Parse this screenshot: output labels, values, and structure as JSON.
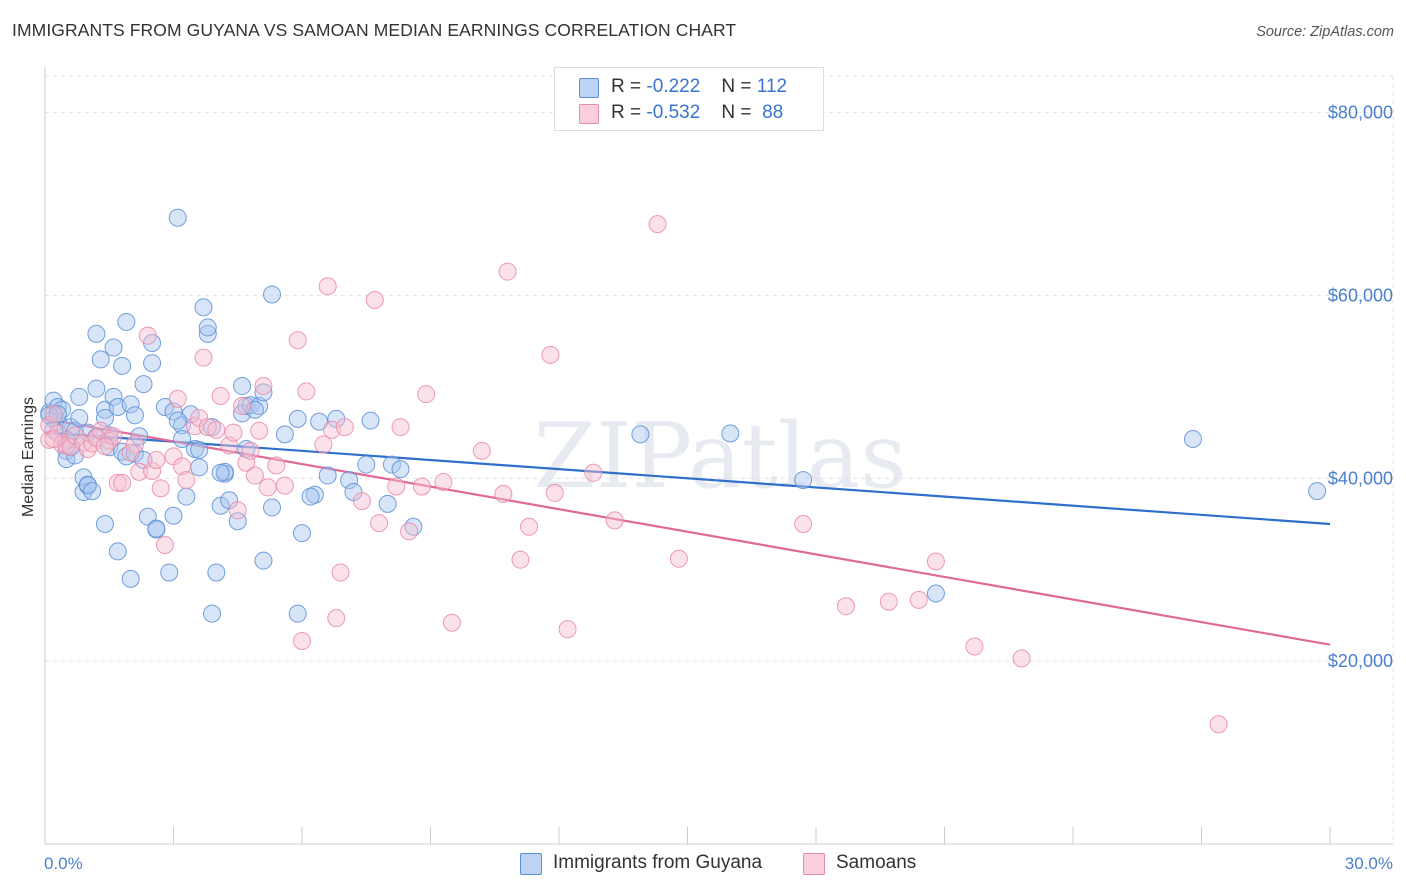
{
  "title": "IMMIGRANTS FROM GUYANA VS SAMOAN MEDIAN EARNINGS CORRELATION CHART",
  "source": "Source: ZipAtlas.com",
  "watermark": "ZIPatlas",
  "legend": {
    "rows": [
      {
        "r_label": "R =",
        "r_value": "-0.222",
        "n_label": "N =",
        "n_value": "112"
      },
      {
        "r_label": "R =",
        "r_value": "-0.532",
        "n_label": "N =",
        "n_value": "88"
      }
    ]
  },
  "colors": {
    "blue_fill": "#a9c6f0",
    "blue_stroke": "#5b8fd6",
    "blue_line": "#2f6fcc",
    "pink_fill": "#f6bfd0",
    "pink_stroke": "#e98aa8",
    "pink_line": "#e06a94",
    "tick_text": "#4a7fd0",
    "grid": "#e3e3e3"
  },
  "chart_data": {
    "type": "scatter",
    "title": "IMMIGRANTS FROM GUYANA VS SAMOAN MEDIAN EARNINGS CORRELATION CHART",
    "xlabel": "",
    "ylabel": "Median Earnings",
    "xlim": [
      0,
      30
    ],
    "ylim": [
      0,
      84000
    ],
    "x_tick_labels": [
      "0.0%",
      "30.0%"
    ],
    "y_ticks": [
      20000,
      40000,
      60000,
      80000
    ],
    "y_tick_labels": [
      "$20,000",
      "$40,000",
      "$60,000",
      "$80,000"
    ],
    "grid": true,
    "legend_position": "top-center",
    "series": [
      {
        "name": "Immigrants from Guyana",
        "color": "#5b8fd6",
        "trend": {
          "x": [
            0,
            30
          ],
          "y": [
            45000,
            35000
          ]
        },
        "points": [
          [
            0.1,
            47200
          ],
          [
            0.2,
            46500
          ],
          [
            0.2,
            48500
          ],
          [
            0.3,
            47800
          ],
          [
            0.3,
            46200
          ],
          [
            0.4,
            47500
          ],
          [
            0.5,
            43000
          ],
          [
            0.5,
            42100
          ],
          [
            0.6,
            45600
          ],
          [
            0.7,
            45200
          ],
          [
            0.7,
            42500
          ],
          [
            0.8,
            48900
          ],
          [
            0.8,
            46600
          ],
          [
            0.9,
            40100
          ],
          [
            0.9,
            38500
          ],
          [
            1.0,
            39200
          ],
          [
            1.0,
            39300
          ],
          [
            1.1,
            38600
          ],
          [
            1.2,
            49800
          ],
          [
            1.2,
            55800
          ],
          [
            1.3,
            53000
          ],
          [
            1.4,
            47500
          ],
          [
            1.4,
            35000
          ],
          [
            1.5,
            44700
          ],
          [
            1.5,
            43400
          ],
          [
            1.6,
            48900
          ],
          [
            1.6,
            54300
          ],
          [
            1.7,
            32000
          ],
          [
            1.7,
            47800
          ],
          [
            1.8,
            42900
          ],
          [
            1.8,
            52300
          ],
          [
            1.9,
            42400
          ],
          [
            1.9,
            57100
          ],
          [
            2.0,
            29000
          ],
          [
            2.0,
            48100
          ],
          [
            2.1,
            42700
          ],
          [
            2.1,
            46900
          ],
          [
            2.2,
            44600
          ],
          [
            2.3,
            50300
          ],
          [
            2.4,
            35800
          ],
          [
            2.5,
            54800
          ],
          [
            2.5,
            52600
          ],
          [
            2.6,
            34400
          ],
          [
            2.6,
            34500
          ],
          [
            2.8,
            47800
          ],
          [
            2.9,
            29700
          ],
          [
            3.0,
            35900
          ],
          [
            3.0,
            47300
          ],
          [
            3.1,
            68500
          ],
          [
            3.2,
            45800
          ],
          [
            3.2,
            44300
          ],
          [
            3.3,
            38000
          ],
          [
            3.4,
            47000
          ],
          [
            3.5,
            43200
          ],
          [
            3.6,
            41200
          ],
          [
            3.6,
            43100
          ],
          [
            3.7,
            58700
          ],
          [
            3.8,
            55800
          ],
          [
            3.8,
            56500
          ],
          [
            3.9,
            45600
          ],
          [
            3.9,
            25200
          ],
          [
            4.0,
            29700
          ],
          [
            4.1,
            37000
          ],
          [
            4.2,
            40500
          ],
          [
            4.2,
            40700
          ],
          [
            4.3,
            37600
          ],
          [
            4.5,
            35300
          ],
          [
            4.6,
            47100
          ],
          [
            4.6,
            50100
          ],
          [
            4.7,
            43200
          ],
          [
            4.7,
            47900
          ],
          [
            4.8,
            48000
          ],
          [
            5.0,
            47900
          ],
          [
            5.1,
            49400
          ],
          [
            5.1,
            31000
          ],
          [
            5.3,
            60100
          ],
          [
            5.3,
            36800
          ],
          [
            5.6,
            44800
          ],
          [
            5.9,
            46500
          ],
          [
            5.9,
            25200
          ],
          [
            6.0,
            34000
          ],
          [
            6.3,
            38200
          ],
          [
            6.4,
            46200
          ],
          [
            6.6,
            40300
          ],
          [
            6.8,
            46500
          ],
          [
            7.1,
            39800
          ],
          [
            7.2,
            38500
          ],
          [
            7.5,
            41500
          ],
          [
            7.6,
            46300
          ],
          [
            8.0,
            37200
          ],
          [
            8.1,
            41500
          ],
          [
            8.3,
            41000
          ],
          [
            8.6,
            34700
          ],
          [
            13.9,
            44800
          ],
          [
            16.0,
            44900
          ],
          [
            17.7,
            39800
          ],
          [
            20.8,
            27400
          ],
          [
            26.8,
            44300
          ],
          [
            29.7,
            38600
          ],
          [
            0.1,
            46900
          ],
          [
            0.3,
            47000
          ],
          [
            0.6,
            43500
          ],
          [
            1.0,
            45000
          ],
          [
            1.4,
            46600
          ],
          [
            2.3,
            42000
          ],
          [
            3.1,
            46300
          ],
          [
            4.1,
            40600
          ],
          [
            4.9,
            47500
          ],
          [
            6.2,
            38000
          ],
          [
            0.2,
            45300
          ],
          [
            0.5,
            44200
          ],
          [
            1.2,
            44500
          ]
        ]
      },
      {
        "name": "Samoans",
        "color": "#e98aa8",
        "trend": {
          "x": [
            0,
            30
          ],
          "y": [
            46500,
            21800
          ]
        },
        "points": [
          [
            0.1,
            44200
          ],
          [
            0.1,
            45800
          ],
          [
            0.2,
            47000
          ],
          [
            0.3,
            44900
          ],
          [
            0.4,
            43700
          ],
          [
            0.5,
            43600
          ],
          [
            0.6,
            43400
          ],
          [
            0.7,
            44700
          ],
          [
            0.9,
            43900
          ],
          [
            1.0,
            43200
          ],
          [
            1.1,
            43800
          ],
          [
            1.2,
            44400
          ],
          [
            1.3,
            45200
          ],
          [
            1.5,
            44100
          ],
          [
            1.6,
            44600
          ],
          [
            1.7,
            39500
          ],
          [
            1.8,
            39500
          ],
          [
            2.1,
            43700
          ],
          [
            2.2,
            40700
          ],
          [
            2.4,
            55600
          ],
          [
            2.5,
            40800
          ],
          [
            2.6,
            42000
          ],
          [
            2.7,
            38900
          ],
          [
            2.8,
            32700
          ],
          [
            3.0,
            42400
          ],
          [
            3.1,
            48700
          ],
          [
            3.2,
            41300
          ],
          [
            3.5,
            45700
          ],
          [
            3.6,
            46600
          ],
          [
            3.7,
            53200
          ],
          [
            3.8,
            45600
          ],
          [
            4.0,
            45300
          ],
          [
            4.1,
            49000
          ],
          [
            4.3,
            43600
          ],
          [
            4.5,
            36500
          ],
          [
            4.6,
            47900
          ],
          [
            4.7,
            41700
          ],
          [
            4.8,
            43000
          ],
          [
            4.9,
            40300
          ],
          [
            5.0,
            45200
          ],
          [
            5.1,
            50100
          ],
          [
            5.2,
            39000
          ],
          [
            5.4,
            41400
          ],
          [
            5.6,
            39200
          ],
          [
            5.9,
            55100
          ],
          [
            6.0,
            22200
          ],
          [
            6.1,
            49500
          ],
          [
            6.5,
            43700
          ],
          [
            6.6,
            61000
          ],
          [
            6.7,
            45300
          ],
          [
            6.8,
            24700
          ],
          [
            6.9,
            29700
          ],
          [
            7.0,
            45600
          ],
          [
            7.4,
            37500
          ],
          [
            7.7,
            59500
          ],
          [
            7.8,
            35100
          ],
          [
            8.2,
            39100
          ],
          [
            8.3,
            45600
          ],
          [
            8.5,
            34200
          ],
          [
            8.8,
            39100
          ],
          [
            8.9,
            49200
          ],
          [
            9.3,
            39600
          ],
          [
            9.5,
            24200
          ],
          [
            10.2,
            43000
          ],
          [
            10.7,
            38300
          ],
          [
            10.8,
            62600
          ],
          [
            11.1,
            31100
          ],
          [
            11.3,
            34700
          ],
          [
            11.8,
            53500
          ],
          [
            11.9,
            38400
          ],
          [
            12.2,
            23500
          ],
          [
            12.8,
            40600
          ],
          [
            13.3,
            35400
          ],
          [
            14.3,
            67800
          ],
          [
            14.8,
            31200
          ],
          [
            17.7,
            35000
          ],
          [
            18.7,
            26000
          ],
          [
            19.7,
            26500
          ],
          [
            20.4,
            26700
          ],
          [
            20.8,
            30900
          ],
          [
            21.7,
            21600
          ],
          [
            22.8,
            20300
          ],
          [
            27.4,
            13100
          ],
          [
            0.2,
            44300
          ],
          [
            1.4,
            43500
          ],
          [
            2.0,
            42800
          ],
          [
            3.3,
            39800
          ],
          [
            4.4,
            45000
          ]
        ]
      }
    ]
  }
}
